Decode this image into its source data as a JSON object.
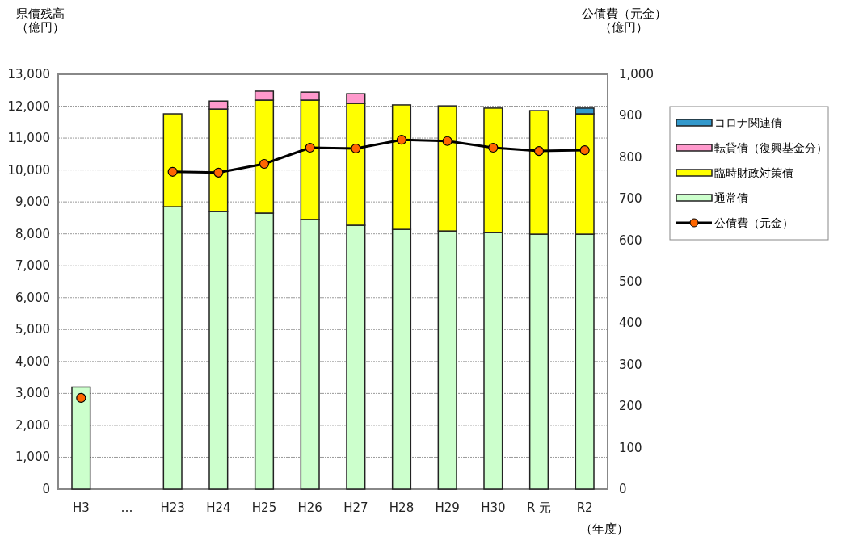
{
  "chart_data": {
    "type": "bar",
    "stacked": true,
    "ylabel": "県債残高（億円）",
    "y2label": "公債費（元金）（億円）",
    "xlabel": "（年度）",
    "categories": [
      "H3",
      "…",
      "H23",
      "H24",
      "H25",
      "H26",
      "H27",
      "H28",
      "H29",
      "H30",
      "R 元",
      "R2"
    ],
    "series": [
      {
        "name": "通常債",
        "color": "#ccffcc",
        "values": [
          3200,
          null,
          8850,
          8700,
          8650,
          8450,
          8270,
          8140,
          8090,
          8040,
          7990,
          7990
        ]
      },
      {
        "name": "臨時財政対策債",
        "color": "#ffff00",
        "values": [
          null,
          null,
          2910,
          3210,
          3540,
          3740,
          3820,
          3900,
          3920,
          3900,
          3870,
          3770
        ]
      },
      {
        "name": "転貸債（復興基金分）",
        "color": "#ff99cc",
        "values": [
          null,
          null,
          null,
          250,
          280,
          250,
          300,
          null,
          null,
          null,
          null,
          null
        ]
      },
      {
        "name": "コロナ関連債",
        "color": "#3399cc",
        "values": [
          null,
          null,
          null,
          null,
          null,
          null,
          null,
          null,
          null,
          null,
          null,
          180
        ]
      },
      {
        "name": "公債費（元金）",
        "type": "line",
        "axis": "y2",
        "color": "#000000",
        "marker": "circle",
        "values": [
          220,
          null,
          765,
          763,
          784,
          823,
          821,
          842,
          839,
          823,
          815,
          817
        ]
      }
    ],
    "ylim": [
      0,
      13000
    ],
    "yticks": [
      {
        "value": 0,
        "label": "0"
      },
      {
        "value": 1000,
        "label": "1,000"
      },
      {
        "value": 2000,
        "label": "2,000"
      },
      {
        "value": 3000,
        "label": "3,000"
      },
      {
        "value": 4000,
        "label": "4,000"
      },
      {
        "value": 5000,
        "label": "5,000"
      },
      {
        "value": 6000,
        "label": "6,000"
      },
      {
        "value": 7000,
        "label": "7,000"
      },
      {
        "value": 8000,
        "label": "8,000"
      },
      {
        "value": 9000,
        "label": "9,000"
      },
      {
        "value": 10000,
        "label": "10,000"
      },
      {
        "value": 11000,
        "label": "11,000"
      },
      {
        "value": 12000,
        "label": "12,000"
      },
      {
        "value": 13000,
        "label": "13,000"
      }
    ],
    "y2lim": [
      0,
      1000
    ],
    "y2ticks": [
      0,
      100,
      200,
      300,
      400,
      500,
      600,
      700,
      800,
      900,
      {
        "value": 1000,
        "label": "1,000"
      }
    ],
    "grid": "y",
    "legend": "right"
  }
}
